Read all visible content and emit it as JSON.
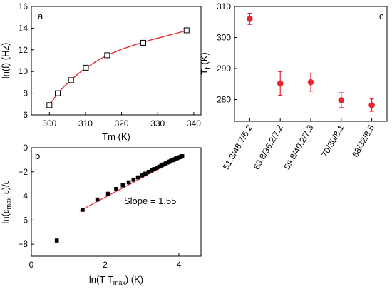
{
  "chart_data": [
    {
      "panel": "a",
      "type": "line",
      "title": "",
      "xlabel": "Tm (K)",
      "ylabel": "ln(f) (Hz)",
      "xlim": [
        295,
        342
      ],
      "ylim": [
        6,
        16
      ],
      "xticks": [
        300,
        310,
        320,
        330,
        340
      ],
      "yticks": [
        6,
        8,
        10,
        12,
        14,
        16
      ],
      "series": [
        {
          "kind": "markers",
          "marker": "open-square",
          "x": [
            300.0,
            302.3,
            306.0,
            310.1,
            316.0,
            326.0,
            338.0
          ],
          "y": [
            6.9,
            8.0,
            9.2,
            10.35,
            11.5,
            12.65,
            13.8
          ]
        },
        {
          "kind": "fit",
          "color": "#e8262d",
          "x": [
            300.0,
            302.0,
            304.0,
            306.0,
            308.0,
            310.0,
            313.0,
            316.0,
            320.0,
            324.0,
            328.0,
            332.0,
            336.0,
            338.0
          ],
          "y": [
            6.9,
            7.85,
            8.6,
            9.2,
            9.8,
            10.3,
            10.95,
            11.5,
            12.05,
            12.5,
            12.9,
            13.25,
            13.6,
            13.8
          ]
        }
      ]
    },
    {
      "panel": "b",
      "type": "scatter",
      "title": "",
      "xlabel": "ln(T-T",
      "xlabel_sub": "max",
      "xlabel_end": ") (K)",
      "ylabel_parts": [
        "ln(ε",
        "max",
        "-ε)/ε"
      ],
      "xlim": [
        0,
        4.6
      ],
      "ylim": [
        -9,
        0
      ],
      "xticks": [
        0,
        2,
        4
      ],
      "yticks": [
        0,
        -2,
        -4,
        -6,
        -8
      ],
      "annotation": "Slope = 1.55",
      "series": [
        {
          "kind": "markers",
          "marker": "filled-square",
          "x": [
            0.69,
            1.39,
            1.79,
            2.08,
            2.3,
            2.48,
            2.64,
            2.77,
            2.89,
            3.0,
            3.09,
            3.18,
            3.26,
            3.33,
            3.4,
            3.47,
            3.53,
            3.58,
            3.64,
            3.69,
            3.74,
            3.78,
            3.83,
            3.87,
            3.91,
            3.95,
            3.99,
            4.02,
            4.06,
            4.09
          ],
          "y": [
            -7.7,
            -5.15,
            -4.3,
            -3.82,
            -3.42,
            -3.12,
            -2.87,
            -2.65,
            -2.46,
            -2.3,
            -2.15,
            -2.0,
            -1.88,
            -1.77,
            -1.66,
            -1.56,
            -1.47,
            -1.39,
            -1.31,
            -1.23,
            -1.16,
            -1.1,
            -1.03,
            -0.98,
            -0.92,
            -0.87,
            -0.82,
            -0.78,
            -0.74,
            -0.7
          ]
        },
        {
          "kind": "fit",
          "color": "#e8262d",
          "x": [
            1.3,
            4.1
          ],
          "y": [
            -5.25,
            -0.7
          ]
        }
      ]
    },
    {
      "panel": "c",
      "type": "scatter",
      "title": "",
      "xlabel": "",
      "ylabel": "T",
      "ylabel_sub": "f",
      "ylabel_end": " (K)",
      "ylim": [
        273,
        310
      ],
      "yticks": [
        280,
        290,
        300,
        310
      ],
      "categories": [
        "51.3/48.7/6.2",
        "63.8/36.2/7.2",
        "59.8/40.2/7.3",
        "70/30/8.1",
        "68/32/8.5"
      ],
      "series": [
        {
          "kind": "markers",
          "marker": "filled-circle",
          "color": "#e8262d",
          "values": [
            306.0,
            285.2,
            285.6,
            279.8,
            278.2
          ],
          "errors": [
            1.8,
            3.8,
            2.9,
            2.4,
            2.0
          ]
        }
      ]
    }
  ]
}
